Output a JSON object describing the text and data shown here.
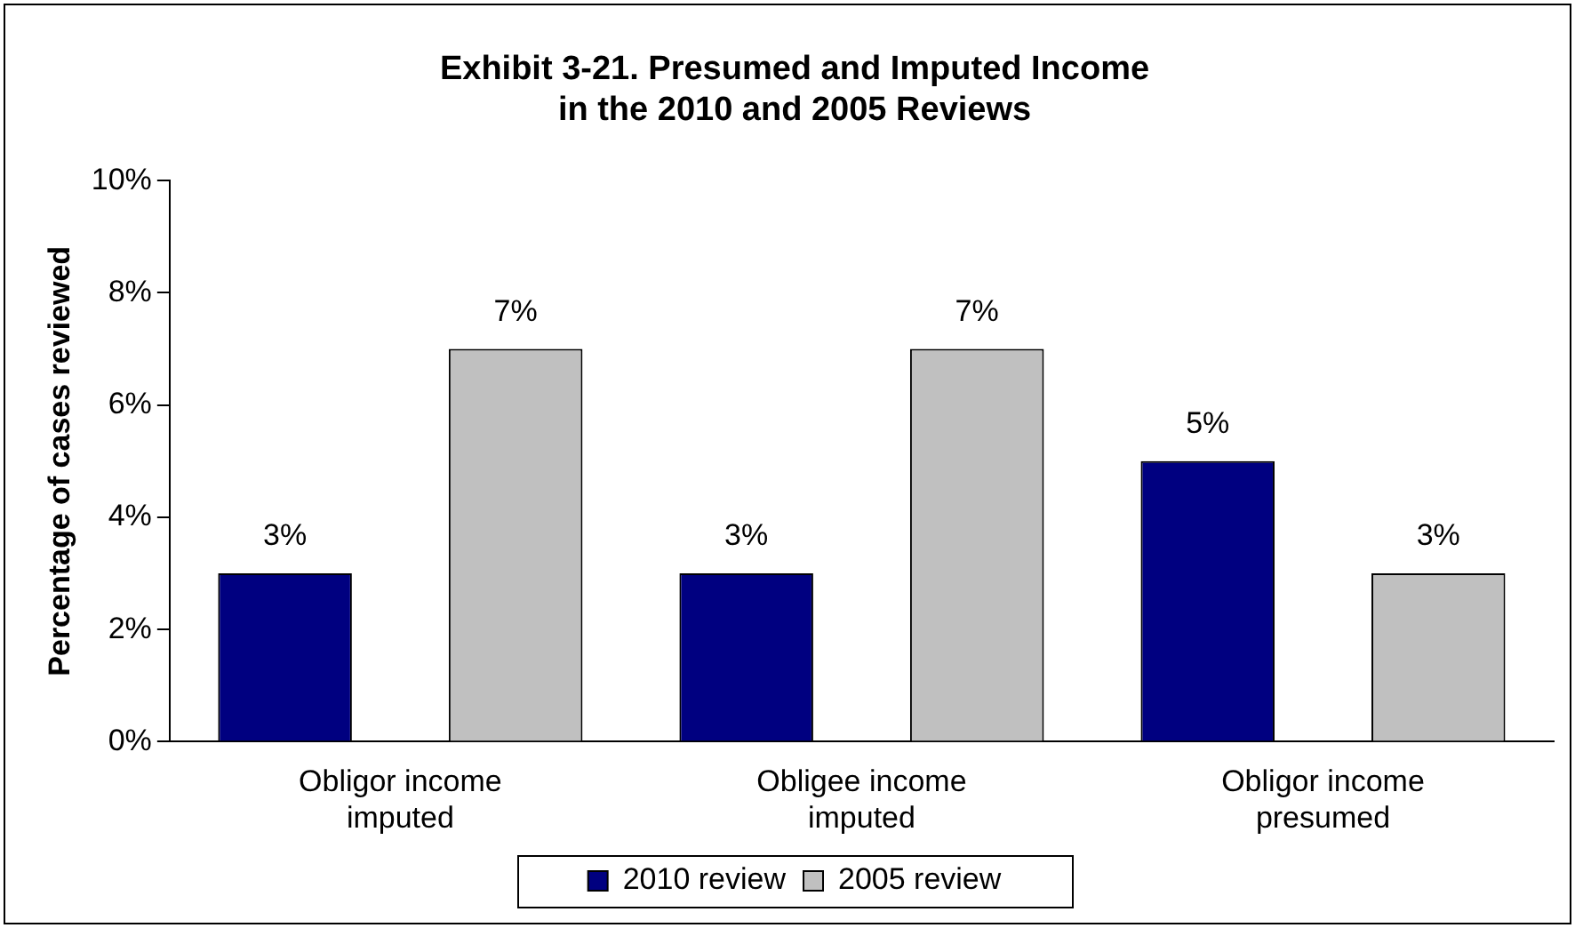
{
  "chart_data": {
    "type": "bar",
    "title": "Exhibit 3-21. Presumed and Imputed Income in the 2010 and 2005 Reviews",
    "ylabel": "Percentage of cases reviewed",
    "categories": [
      "Obligor income imputed",
      "Obligee income imputed",
      "Obligor income presumed"
    ],
    "series": [
      {
        "name": "2010 review",
        "color": "#000080",
        "values": [
          3,
          3,
          5
        ],
        "value_labels": [
          "3%",
          "3%",
          "5%"
        ]
      },
      {
        "name": "2005 review",
        "color": "#c0c0c0",
        "values": [
          7,
          7,
          3
        ],
        "value_labels": [
          "7%",
          "7%",
          "3%"
        ]
      }
    ],
    "ylim": [
      0,
      10
    ],
    "yticks": [
      {
        "value": 0,
        "label": "0%"
      },
      {
        "value": 2,
        "label": "2%"
      },
      {
        "value": 4,
        "label": "4%"
      },
      {
        "value": 6,
        "label": "6%"
      },
      {
        "value": 8,
        "label": "8%"
      },
      {
        "value": 10,
        "label": "10%"
      }
    ],
    "grid": false,
    "legend": "bottom"
  }
}
